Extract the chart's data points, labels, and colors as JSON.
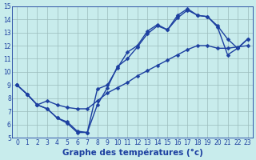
{
  "xlabel": "Graphe des températures (°c)",
  "background_color": "#c8ecec",
  "grid_color": "#9bbcbc",
  "line_color": "#1c3fa0",
  "xlim": [
    -0.5,
    23.5
  ],
  "ylim": [
    5,
    15
  ],
  "xticks": [
    0,
    1,
    2,
    3,
    4,
    5,
    6,
    7,
    8,
    9,
    10,
    11,
    12,
    13,
    14,
    15,
    16,
    17,
    18,
    19,
    20,
    21,
    22,
    23
  ],
  "yticks": [
    5,
    6,
    7,
    8,
    9,
    10,
    11,
    12,
    13,
    14,
    15
  ],
  "line1_x": [
    0,
    1,
    2,
    3,
    4,
    5,
    6,
    7,
    8,
    9,
    10,
    11,
    12,
    13,
    14,
    15,
    16,
    17,
    18,
    19,
    20,
    21,
    22,
    23
  ],
  "line1_y": [
    9.0,
    8.3,
    7.5,
    7.2,
    6.5,
    6.1,
    5.4,
    5.4,
    7.5,
    8.8,
    10.4,
    11.0,
    11.9,
    12.9,
    13.5,
    13.2,
    14.3,
    14.8,
    14.3,
    14.2,
    13.5,
    12.5,
    11.8,
    12.5
  ],
  "line2_x": [
    0,
    1,
    2,
    3,
    4,
    5,
    6,
    7,
    8,
    9,
    10,
    11,
    12,
    13,
    14,
    15,
    16,
    17,
    18,
    19,
    20,
    21,
    22,
    23
  ],
  "line2_y": [
    9.0,
    8.3,
    7.5,
    7.2,
    6.5,
    6.2,
    5.5,
    5.4,
    8.7,
    9.0,
    10.3,
    11.5,
    12.0,
    13.1,
    13.6,
    13.2,
    14.1,
    14.7,
    14.3,
    14.2,
    13.4,
    11.3,
    11.8,
    12.5
  ],
  "line3_x": [
    0,
    1,
    2,
    3,
    4,
    5,
    6,
    7,
    8,
    9,
    10,
    11,
    12,
    13,
    14,
    15,
    16,
    17,
    18,
    19,
    20,
    21,
    22,
    23
  ],
  "line3_y": [
    9.0,
    8.3,
    7.5,
    7.8,
    7.5,
    7.3,
    7.2,
    7.2,
    7.8,
    8.4,
    8.8,
    9.2,
    9.7,
    10.1,
    10.5,
    10.9,
    11.3,
    11.7,
    12.0,
    12.0,
    11.8,
    11.8,
    11.9,
    12.0
  ],
  "marker": "D",
  "markersize": 2.5,
  "linewidth": 1.0,
  "xlabel_fontsize": 7.5,
  "tick_fontsize": 5.5
}
